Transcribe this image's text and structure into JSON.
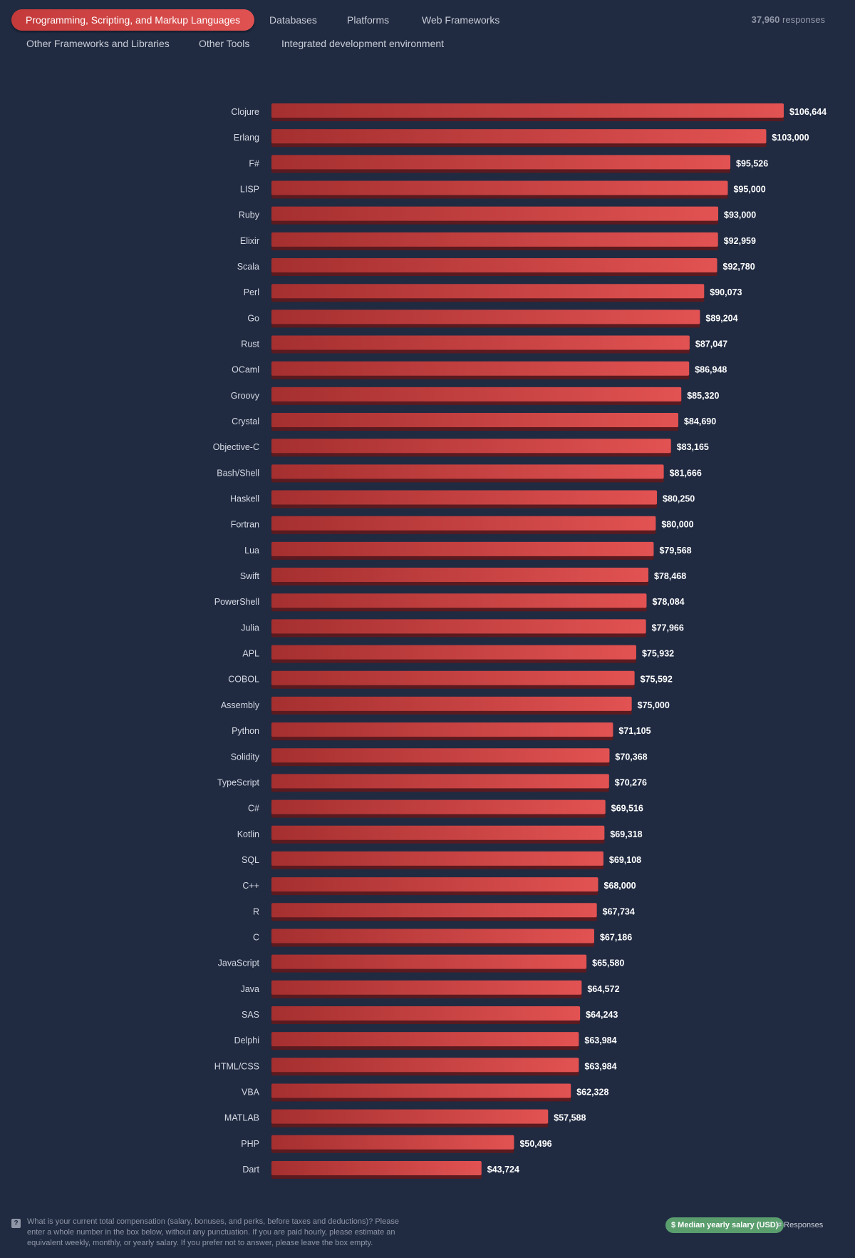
{
  "tabs": [
    {
      "label": "Programming, Scripting, and Markup Languages",
      "active": true
    },
    {
      "label": "Databases",
      "active": false
    },
    {
      "label": "Platforms",
      "active": false
    },
    {
      "label": "Web Frameworks",
      "active": false
    },
    {
      "label": "Other Frameworks and Libraries",
      "active": false
    },
    {
      "label": "Other Tools",
      "active": false
    },
    {
      "label": "Integrated development environment",
      "active": false
    }
  ],
  "responses": {
    "count": "37,960",
    "label": "responses"
  },
  "footer": {
    "question_icon": "question-icon",
    "question": "What is your current total compensation (salary, bonuses, and perks, before taxes and deductions)? Please enter a whole number in the box below, without any punctuation. If you are paid hourly, please estimate an equivalent weekly, monthly, or yearly salary. If you prefer not to answer, please leave the box empty.",
    "legend_active": "$ Median yearly salary (USD)",
    "legend_inactive": "# Responses"
  },
  "colors": {
    "background": "#202b42",
    "bar_start": "#a52f2f",
    "bar_end": "#e25252",
    "legend_active": "#5a9e6e"
  },
  "chart_data": {
    "type": "bar",
    "orientation": "horizontal",
    "categories": [
      "Clojure",
      "Erlang",
      "F#",
      "LISP",
      "Ruby",
      "Elixir",
      "Scala",
      "Perl",
      "Go",
      "Rust",
      "OCaml",
      "Groovy",
      "Crystal",
      "Objective-C",
      "Bash/Shell",
      "Haskell",
      "Fortran",
      "Lua",
      "Swift",
      "PowerShell",
      "Julia",
      "APL",
      "COBOL",
      "Assembly",
      "Python",
      "Solidity",
      "TypeScript",
      "C#",
      "Kotlin",
      "SQL",
      "C++",
      "R",
      "C",
      "JavaScript",
      "Java",
      "SAS",
      "Delphi",
      "HTML/CSS",
      "VBA",
      "MATLAB",
      "PHP",
      "Dart"
    ],
    "values": [
      106644,
      103000,
      95526,
      95000,
      93000,
      92959,
      92780,
      90073,
      89204,
      87047,
      86948,
      85320,
      84690,
      83165,
      81666,
      80250,
      80000,
      79568,
      78468,
      78084,
      77966,
      75932,
      75592,
      75000,
      71105,
      70368,
      70276,
      69516,
      69318,
      69108,
      68000,
      67734,
      67186,
      65580,
      64572,
      64243,
      63984,
      63984,
      62328,
      57588,
      50496,
      43724
    ],
    "labels": [
      "$106,644",
      "$103,000",
      "$95,526",
      "$95,000",
      "$93,000",
      "$92,959",
      "$92,780",
      "$90,073",
      "$89,204",
      "$87,047",
      "$86,948",
      "$85,320",
      "$84,690",
      "$83,165",
      "$81,666",
      "$80,250",
      "$80,000",
      "$79,568",
      "$78,468",
      "$78,084",
      "$77,966",
      "$75,932",
      "$75,592",
      "$75,000",
      "$71,105",
      "$70,368",
      "$70,276",
      "$69,516",
      "$69,318",
      "$69,108",
      "$68,000",
      "$67,734",
      "$67,186",
      "$65,580",
      "$64,572",
      "$64,243",
      "$63,984",
      "$63,984",
      "$62,328",
      "$57,588",
      "$50,496",
      "$43,724"
    ],
    "title": "",
    "xlabel": "",
    "ylabel": "",
    "xlim": [
      0,
      106644
    ],
    "grid": false,
    "legend": "bottom-right"
  }
}
